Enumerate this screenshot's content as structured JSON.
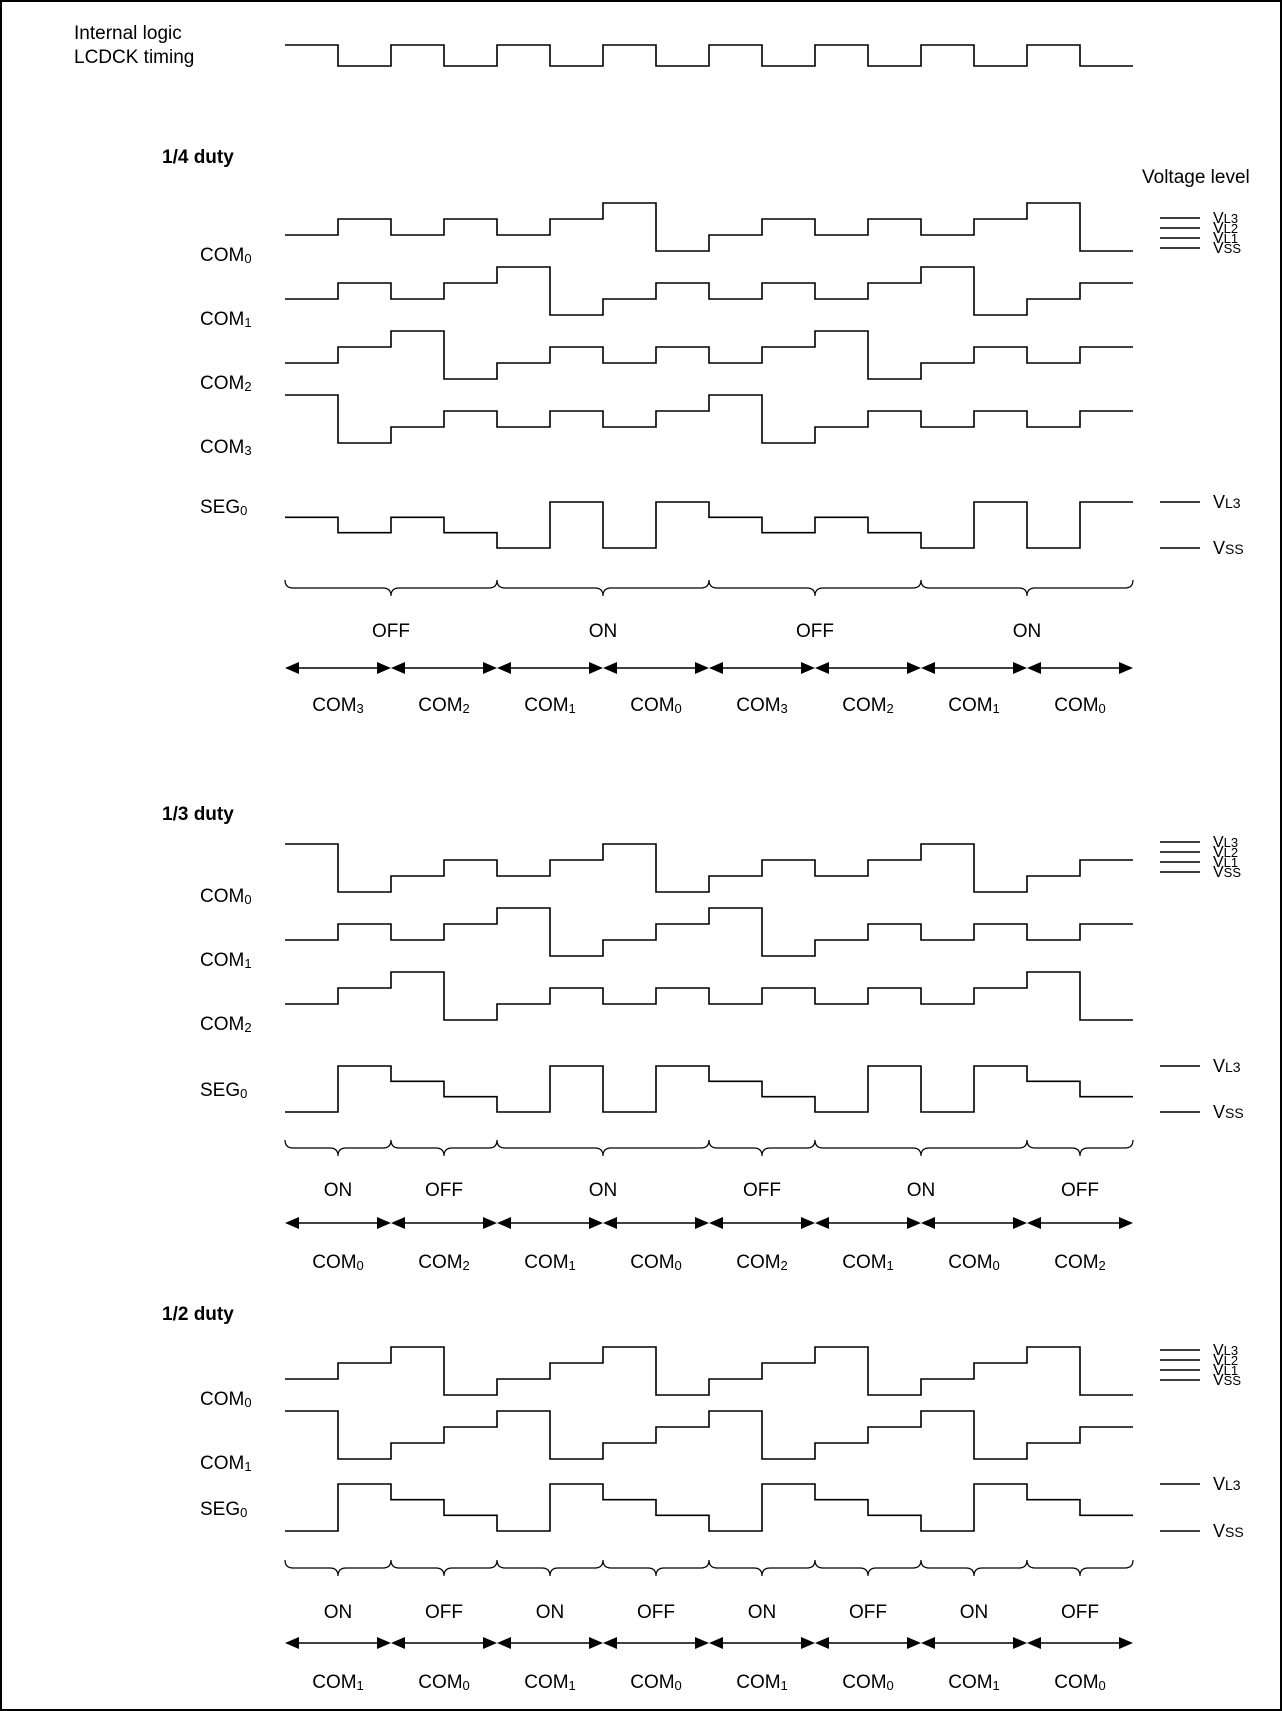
{
  "header": {
    "clock_label_line1": "Internal logic",
    "clock_label_line2": "LCDCK timing",
    "voltage_heading": "Voltage level"
  },
  "clock_wave": [
    1,
    0,
    1,
    0,
    1,
    0,
    1,
    0,
    1,
    0,
    1,
    0,
    1,
    0,
    1,
    0
  ],
  "sections": [
    {
      "id": "quarter",
      "title": "1/4 duty",
      "com_levels": [
        "L3",
        "L2",
        "L1",
        "SS"
      ],
      "seg_levels": [
        "L3",
        "SS"
      ],
      "signals": [
        {
          "name": "COM",
          "sub": "0",
          "levels": [
            1,
            2,
            1,
            2,
            1,
            2,
            3,
            0,
            1,
            2,
            1,
            2,
            1,
            2,
            3,
            0
          ]
        },
        {
          "name": "COM",
          "sub": "1",
          "levels": [
            1,
            2,
            1,
            2,
            3,
            0,
            1,
            2,
            1,
            2,
            1,
            2,
            3,
            0,
            1,
            2
          ]
        },
        {
          "name": "COM",
          "sub": "2",
          "levels": [
            1,
            2,
            3,
            0,
            1,
            2,
            1,
            2,
            1,
            2,
            3,
            0,
            1,
            2,
            1,
            2
          ]
        },
        {
          "name": "COM",
          "sub": "3",
          "levels": [
            3,
            0,
            1,
            2,
            1,
            2,
            1,
            2,
            3,
            0,
            1,
            2,
            1,
            2,
            1,
            2
          ]
        },
        {
          "name": "SEG",
          "sub": "0",
          "levels": [
            2,
            1,
            2,
            1,
            0,
            3,
            0,
            3,
            2,
            1,
            2,
            1,
            0,
            3,
            0,
            3
          ]
        }
      ],
      "braces": [
        {
          "span": [
            0,
            4
          ],
          "label": "OFF"
        },
        {
          "span": [
            4,
            8
          ],
          "label": "ON"
        },
        {
          "span": [
            8,
            12
          ],
          "label": "OFF"
        },
        {
          "span": [
            12,
            16
          ],
          "label": "ON"
        }
      ],
      "arrow_labels": [
        {
          "name": "COM",
          "sub": "3"
        },
        {
          "name": "COM",
          "sub": "2"
        },
        {
          "name": "COM",
          "sub": "1"
        },
        {
          "name": "COM",
          "sub": "0"
        },
        {
          "name": "COM",
          "sub": "3"
        },
        {
          "name": "COM",
          "sub": "2"
        },
        {
          "name": "COM",
          "sub": "1"
        },
        {
          "name": "COM",
          "sub": "0"
        }
      ]
    },
    {
      "id": "third",
      "title": "1/3 duty",
      "com_levels": [
        "L3",
        "L2",
        "L1",
        "SS"
      ],
      "seg_levels": [
        "L3",
        "SS"
      ],
      "signals": [
        {
          "name": "COM",
          "sub": "0",
          "levels": [
            3,
            0,
            1,
            2,
            1,
            2,
            3,
            0,
            1,
            2,
            1,
            2,
            3,
            0,
            1,
            2
          ]
        },
        {
          "name": "COM",
          "sub": "1",
          "levels": [
            1,
            2,
            1,
            2,
            3,
            0,
            1,
            2,
            3,
            0,
            1,
            2,
            1,
            2,
            1,
            2
          ]
        },
        {
          "name": "COM",
          "sub": "2",
          "levels": [
            1,
            2,
            3,
            0,
            1,
            2,
            1,
            2,
            1,
            2,
            1,
            2,
            1,
            2,
            3,
            0
          ]
        },
        {
          "name": "SEG",
          "sub": "0",
          "levels": [
            0,
            3,
            2,
            1,
            0,
            3,
            0,
            3,
            2,
            1,
            0,
            3,
            0,
            3,
            2,
            1
          ]
        }
      ],
      "braces": [
        {
          "span": [
            0,
            2
          ],
          "label": "ON"
        },
        {
          "span": [
            2,
            4
          ],
          "label": "OFF"
        },
        {
          "span": [
            4,
            8
          ],
          "label": "ON"
        },
        {
          "span": [
            8,
            10
          ],
          "label": "OFF"
        },
        {
          "span": [
            10,
            14
          ],
          "label": "ON"
        },
        {
          "span": [
            14,
            16
          ],
          "label": "OFF"
        }
      ],
      "arrow_labels": [
        {
          "name": "COM",
          "sub": "0"
        },
        {
          "name": "COM",
          "sub": "2"
        },
        {
          "name": "COM",
          "sub": "1"
        },
        {
          "name": "COM",
          "sub": "0"
        },
        {
          "name": "COM",
          "sub": "2"
        },
        {
          "name": "COM",
          "sub": "1"
        },
        {
          "name": "COM",
          "sub": "0"
        },
        {
          "name": "COM",
          "sub": "2"
        }
      ]
    },
    {
      "id": "half",
      "title": "1/2 duty",
      "com_levels": [
        "L3",
        "L2",
        "L1",
        "SS"
      ],
      "seg_levels": [
        "L3",
        "SS"
      ],
      "signals": [
        {
          "name": "COM",
          "sub": "0",
          "levels": [
            1,
            2,
            3,
            0,
            1,
            2,
            3,
            0,
            1,
            2,
            3,
            0,
            1,
            2,
            3,
            0
          ]
        },
        {
          "name": "COM",
          "sub": "1",
          "levels": [
            3,
            0,
            1,
            2,
            3,
            0,
            1,
            2,
            3,
            0,
            1,
            2,
            3,
            0,
            1,
            2
          ]
        },
        {
          "name": "SEG",
          "sub": "0",
          "levels": [
            0,
            3,
            2,
            1,
            0,
            3,
            2,
            1,
            0,
            3,
            2,
            1,
            0,
            3,
            2,
            1
          ]
        }
      ],
      "braces": [
        {
          "span": [
            0,
            2
          ],
          "label": "ON"
        },
        {
          "span": [
            2,
            4
          ],
          "label": "OFF"
        },
        {
          "span": [
            4,
            6
          ],
          "label": "ON"
        },
        {
          "span": [
            6,
            8
          ],
          "label": "OFF"
        },
        {
          "span": [
            8,
            10
          ],
          "label": "ON"
        },
        {
          "span": [
            10,
            12
          ],
          "label": "OFF"
        },
        {
          "span": [
            12,
            14
          ],
          "label": "ON"
        },
        {
          "span": [
            14,
            16
          ],
          "label": "OFF"
        }
      ],
      "arrow_labels": [
        {
          "name": "COM",
          "sub": "1"
        },
        {
          "name": "COM",
          "sub": "0"
        },
        {
          "name": "COM",
          "sub": "1"
        },
        {
          "name": "COM",
          "sub": "0"
        },
        {
          "name": "COM",
          "sub": "1"
        },
        {
          "name": "COM",
          "sub": "0"
        },
        {
          "name": "COM",
          "sub": "1"
        },
        {
          "name": "COM",
          "sub": "0"
        }
      ]
    }
  ]
}
